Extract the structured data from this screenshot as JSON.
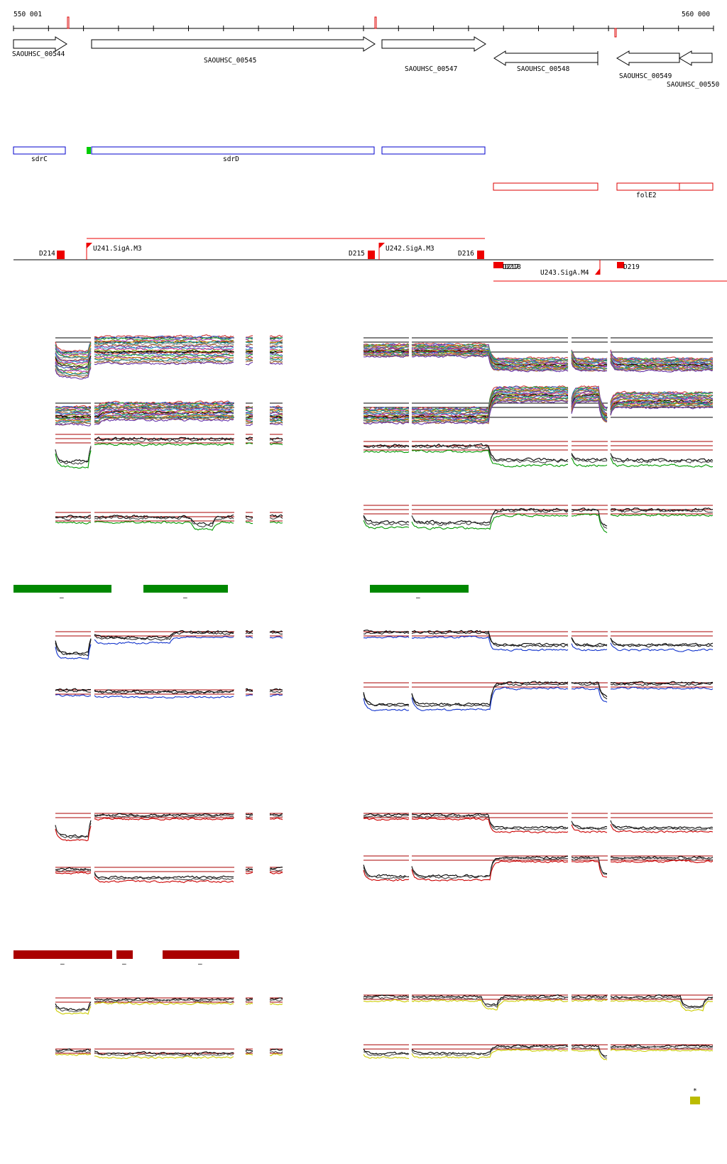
{
  "coordinates": {
    "start_label": "550 001",
    "end_label": "560 000"
  },
  "genes": [
    {
      "name": "SAOUHSC_00544",
      "dir": "right"
    },
    {
      "name": "SAOUHSC_00545",
      "dir": "right"
    },
    {
      "name": "SAOUHSC_00547",
      "dir": "right"
    },
    {
      "name": "SAOUHSC_00548",
      "dir": "left"
    },
    {
      "name": "SAOUHSC_00549",
      "dir": "left"
    },
    {
      "name": "SAOUHSC_00550",
      "dir": "left"
    }
  ],
  "gene_names": [
    "sdrC",
    "sdrD",
    "folE2"
  ],
  "segments": [
    {
      "name": "D214"
    },
    {
      "name": "U241.SigA.M3"
    },
    {
      "name": "D215"
    },
    {
      "name": "U242.SigA.M3"
    },
    {
      "name": "D216"
    },
    {
      "name": "D217"
    },
    {
      "name": "D218"
    },
    {
      "name": "U243.SigA.M4"
    },
    {
      "name": "D219"
    }
  ],
  "condition_groups": [
    {
      "color": "#008800",
      "labels": [
        "–",
        "–",
        "–"
      ]
    },
    {
      "color": "#aa0000",
      "labels": [
        "–",
        "–",
        "–"
      ]
    }
  ],
  "marker": {
    "label": "*",
    "color": "#bbbb00"
  },
  "colors": {
    "gene_outline": "#000000",
    "forward_gene": "#0000cc",
    "reverse_gene": "#dd0000",
    "selected": "#00cc00",
    "segment": "#ee0000",
    "threshold": "#aa0000",
    "blue_trace": "#1133cc",
    "red_trace": "#cc0000",
    "yellow_trace": "#cccc00",
    "green_trace": "#009900"
  }
}
